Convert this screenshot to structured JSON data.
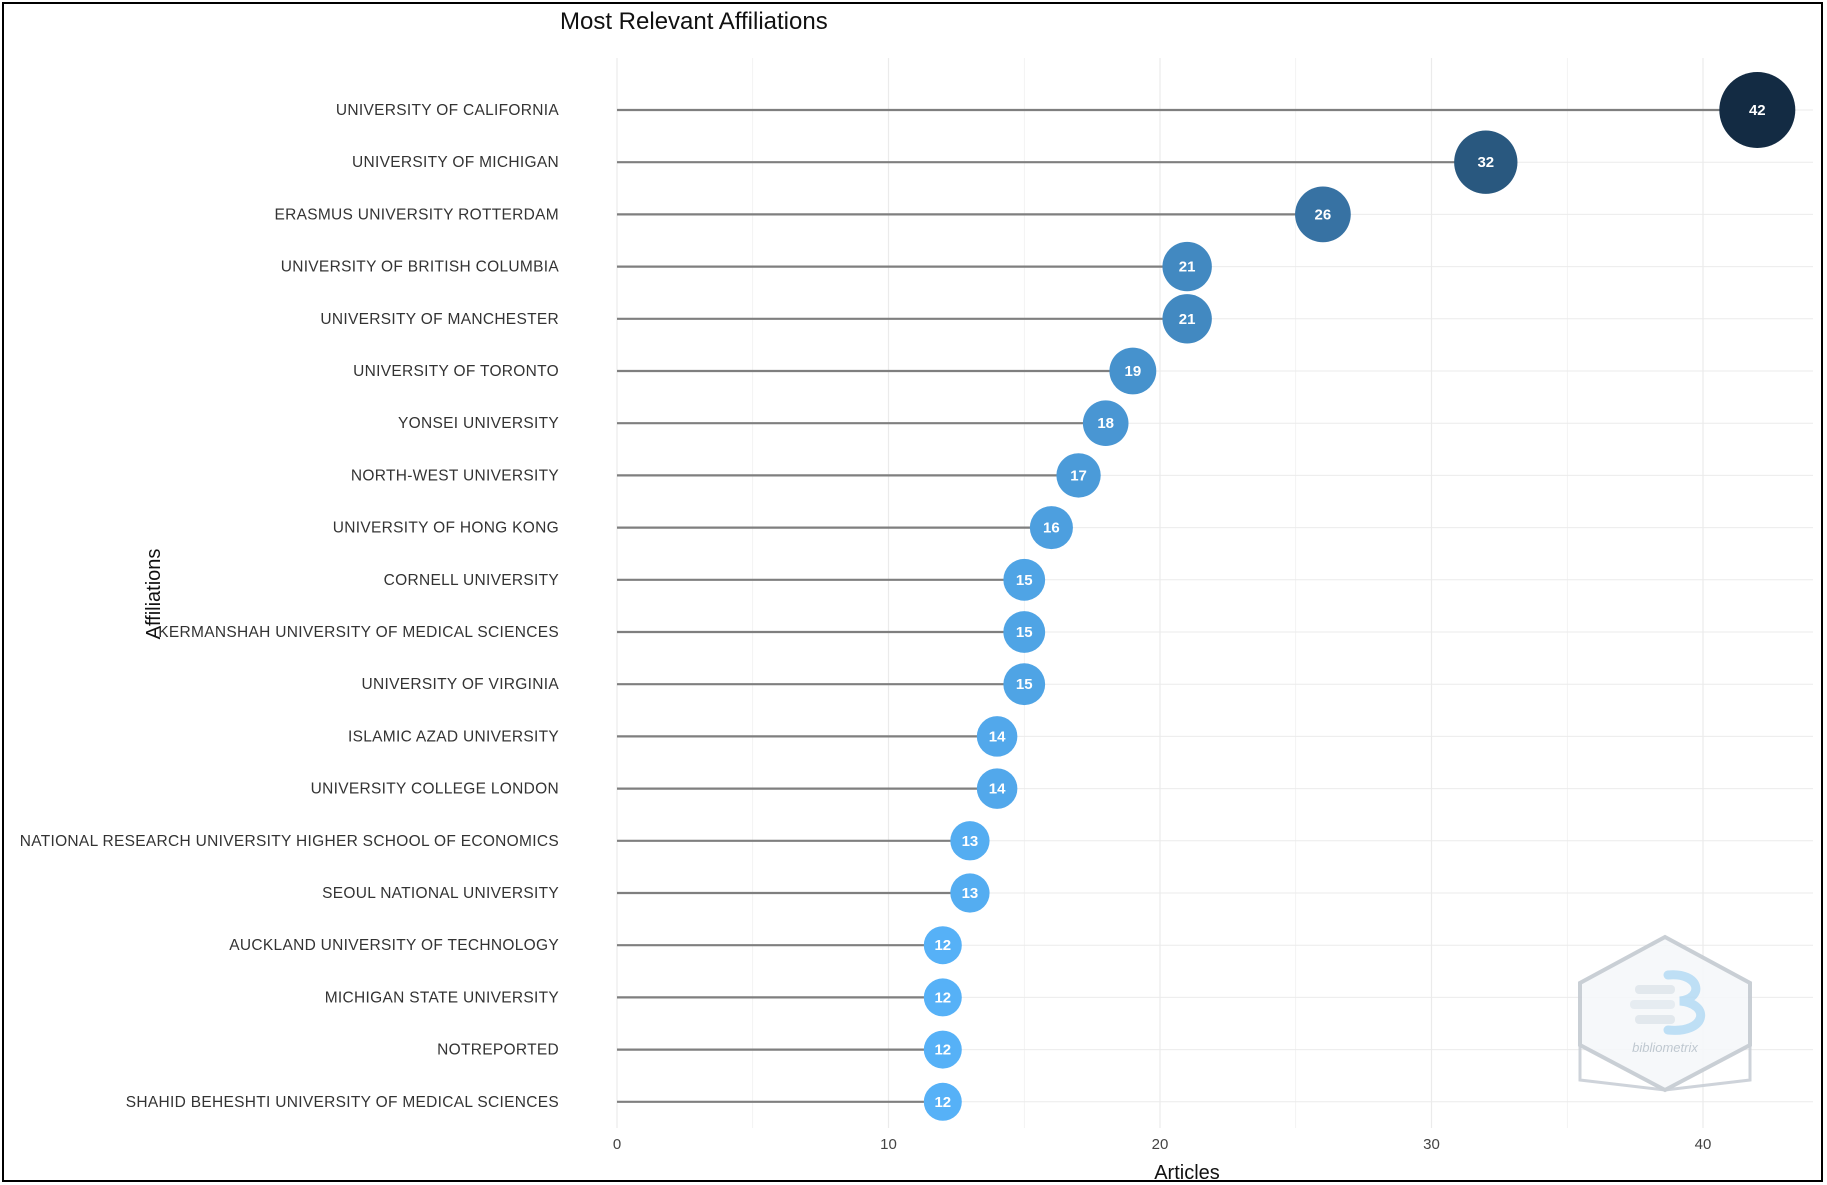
{
  "chart_data": {
    "type": "lollipop",
    "title": "Most Relevant Affiliations",
    "xlabel": "Articles",
    "ylabel": "Affiliations",
    "xlim": [
      0,
      44
    ],
    "xticks": [
      0,
      10,
      20,
      30,
      40
    ],
    "grid": true,
    "categories": [
      "UNIVERSITY OF CALIFORNIA",
      "UNIVERSITY OF MICHIGAN",
      "ERASMUS UNIVERSITY ROTTERDAM",
      "UNIVERSITY OF BRITISH COLUMBIA",
      "UNIVERSITY OF MANCHESTER",
      "UNIVERSITY OF TORONTO",
      "YONSEI UNIVERSITY",
      "NORTH-WEST UNIVERSITY",
      "UNIVERSITY OF HONG KONG",
      "CORNELL UNIVERSITY",
      "KERMANSHAH UNIVERSITY OF MEDICAL SCIENCES",
      "UNIVERSITY OF VIRGINIA",
      "ISLAMIC AZAD UNIVERSITY",
      "UNIVERSITY COLLEGE LONDON",
      "NATIONAL RESEARCH UNIVERSITY HIGHER SCHOOL OF ECONOMICS",
      "SEOUL NATIONAL UNIVERSITY",
      "AUCKLAND UNIVERSITY OF TECHNOLOGY",
      "MICHIGAN STATE UNIVERSITY",
      "NOTREPORTED",
      "SHAHID BEHESHTI UNIVERSITY OF MEDICAL SCIENCES"
    ],
    "values": [
      42,
      32,
      26,
      21,
      21,
      19,
      18,
      17,
      16,
      15,
      15,
      15,
      14,
      14,
      13,
      13,
      12,
      12,
      12,
      12
    ],
    "colors": {
      "low": "#56b1f7",
      "high": "#132b43",
      "stem": "#7f7f7f",
      "grid": "#ebebeb"
    },
    "watermark": {
      "text": "bibliometrix",
      "icon": "bibliometrix-logo-icon"
    }
  }
}
